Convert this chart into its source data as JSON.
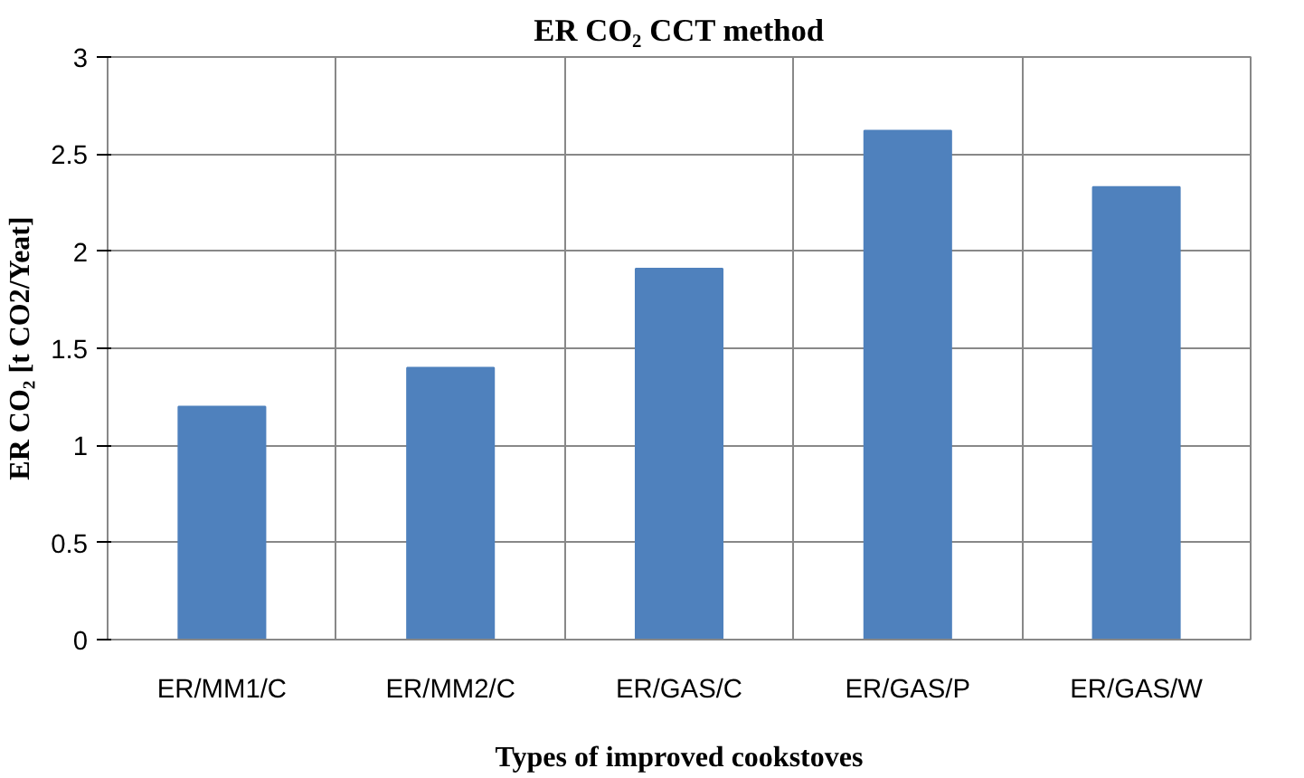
{
  "chart_data": {
    "type": "bar",
    "title": "ER CO₂ CCT method",
    "xlabel": "Types of improved cookstoves",
    "ylabel": "ER CO₂ [t CO2/Yeat]",
    "categories": [
      "ER/MM1/C",
      "ER/MM2/C",
      "ER/GAS/C",
      "ER/GAS/P",
      "ER/GAS/W"
    ],
    "values": [
      1.2,
      1.4,
      1.91,
      2.62,
      2.33
    ],
    "color": "#4f81bd",
    "ylim": [
      0,
      3
    ],
    "yticks": [
      0,
      0.5,
      1,
      1.5,
      2,
      2.5,
      3
    ],
    "grid": true
  }
}
